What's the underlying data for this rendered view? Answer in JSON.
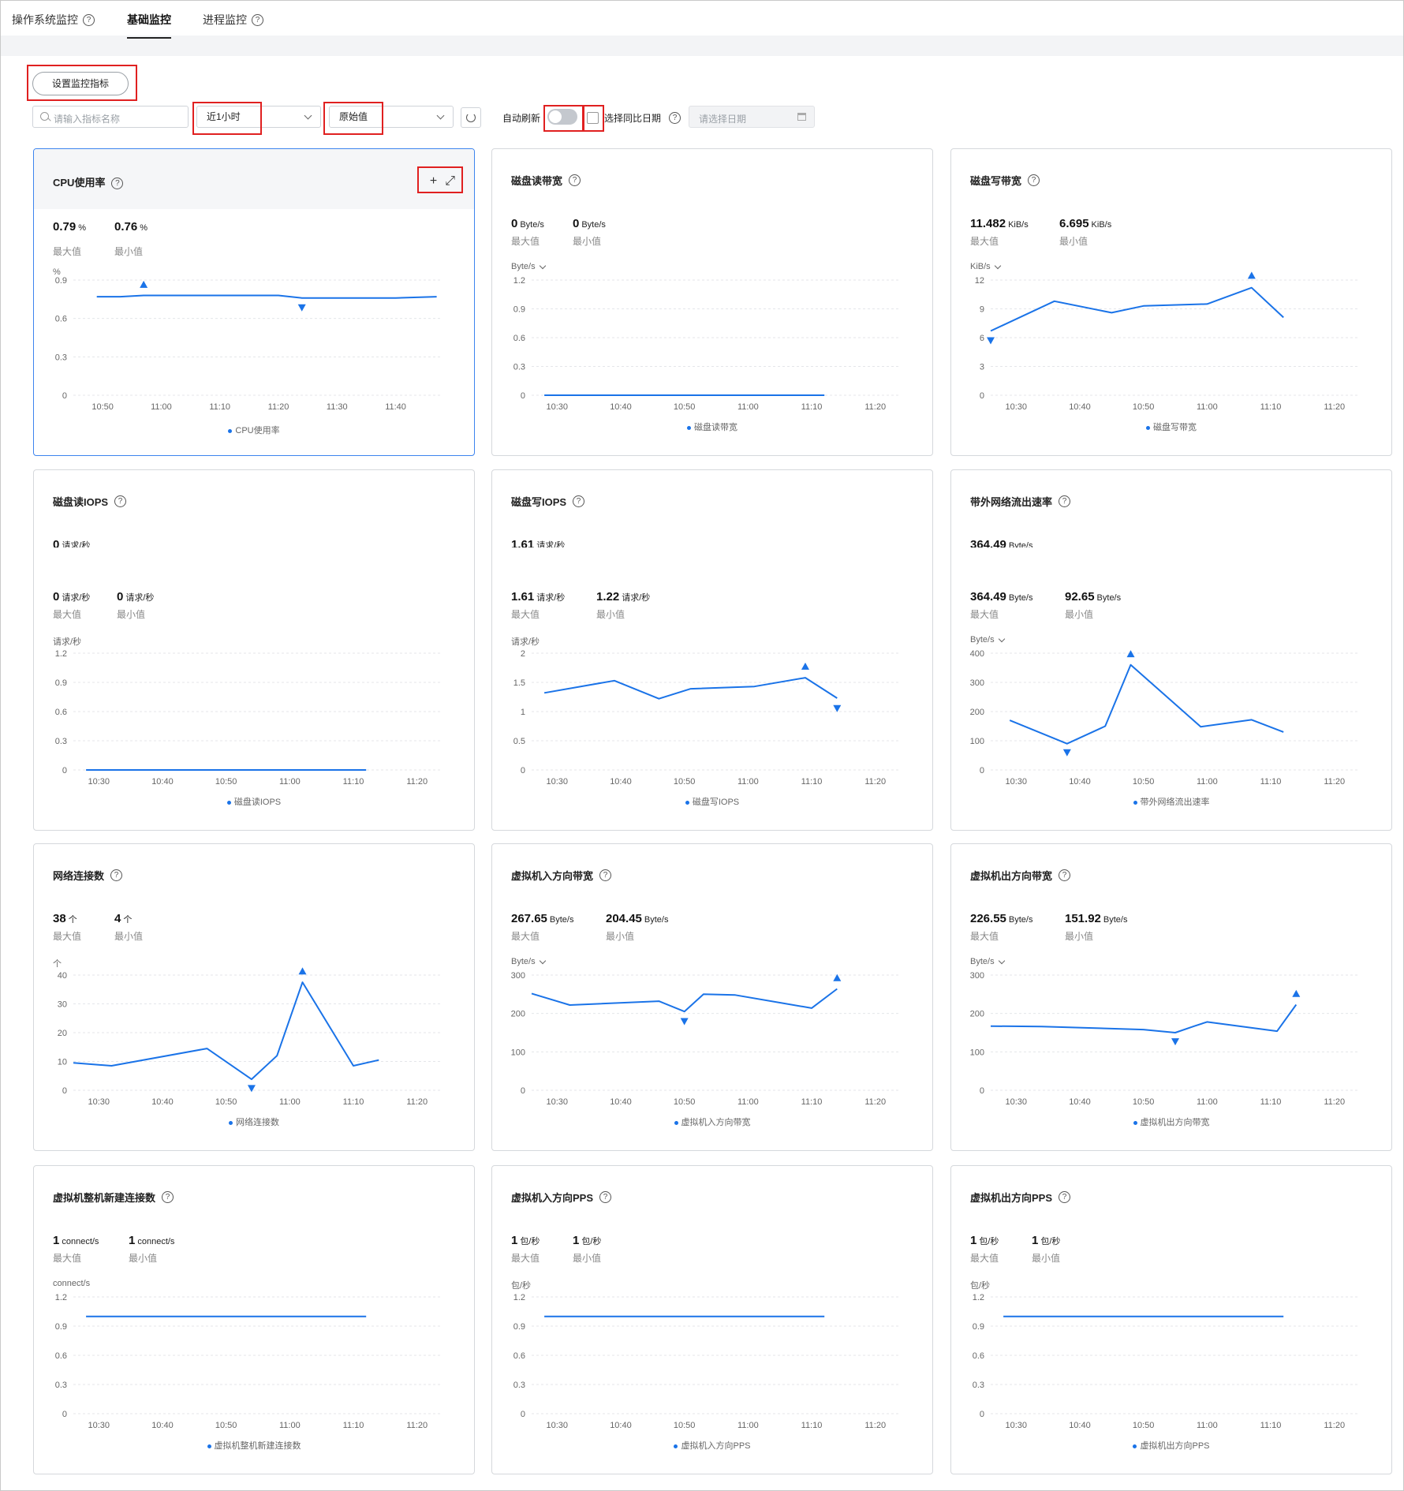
{
  "tabs": [
    {
      "label": "操作系统监控"
    },
    {
      "label": "基础监控"
    },
    {
      "label": "进程监控"
    }
  ],
  "toolbar": {
    "settings_label": "设置监控指标",
    "search_placeholder": "请输入指标名称",
    "time_range": "近1小时",
    "value_mode": "原始值",
    "auto_refresh_label": "自动刷新",
    "auto_refresh_on": false,
    "compare_label": "选择同比日期",
    "date_placeholder": "请选择日期"
  },
  "accent_color": "#1a73e8",
  "charts": [
    {
      "title": "CPU使用率",
      "max": "0.79",
      "min": "0.76",
      "unit_short": "%",
      "unit": "%",
      "unit_dropdown": false,
      "max_label": "最大值",
      "min_label": "最小值",
      "legend": "CPU使用率",
      "selected": true,
      "y_ticks": [
        "0.9",
        "0.6",
        "0.3",
        "0"
      ],
      "y_max": 0.9,
      "x_ticks": [
        "10:50",
        "11:00",
        "11:10",
        "11:20",
        "11:30",
        "11:40"
      ],
      "x_start": "10:45",
      "x_end": "11:48",
      "points": [
        [
          "10:49",
          0.77
        ],
        [
          "10:53",
          0.77
        ],
        [
          "10:57",
          0.78
        ],
        [
          "11:00",
          0.78
        ],
        [
          "11:10",
          0.78
        ],
        [
          "11:20",
          0.78
        ],
        [
          "11:24",
          0.76
        ],
        [
          "11:30",
          0.76
        ],
        [
          "11:40",
          0.76
        ],
        [
          "11:47",
          0.77
        ]
      ],
      "max_marker": [
        "10:57",
        0.79
      ],
      "min_marker": [
        "11:24",
        0.76
      ]
    },
    {
      "title": "磁盘读带宽",
      "max": "0",
      "min": "0",
      "unit_short": "Byte/s",
      "unit": "Byte/s",
      "unit_dropdown": true,
      "max_label": "最大值",
      "min_label": "最小值",
      "legend": "磁盘读带宽",
      "y_ticks": [
        "1.2",
        "0.9",
        "0.6",
        "0.3",
        "0"
      ],
      "y_max": 1.2,
      "x_ticks": [
        "10:30",
        "10:40",
        "10:50",
        "11:00",
        "11:10",
        "11:20"
      ],
      "x_start": "10:26",
      "x_end": "11:24",
      "points": [
        [
          "10:28",
          0
        ],
        [
          "11:12",
          0
        ]
      ]
    },
    {
      "title": "磁盘写带宽",
      "max": "11.482",
      "min": "6.695",
      "unit_short": "KiB/s",
      "unit": "KiB/s",
      "unit_dropdown": true,
      "max_label": "最大值",
      "min_label": "最小值",
      "legend": "磁盘写带宽",
      "y_ticks": [
        "12",
        "9",
        "6",
        "3",
        "0"
      ],
      "y_max": 12,
      "x_ticks": [
        "10:30",
        "10:40",
        "10:50",
        "11:00",
        "11:10",
        "11:20"
      ],
      "x_start": "10:26",
      "x_end": "11:24",
      "points": [
        [
          "10:26",
          6.7
        ],
        [
          "10:36",
          9.8
        ],
        [
          "10:45",
          8.6
        ],
        [
          "10:50",
          9.3
        ],
        [
          "11:00",
          9.5
        ],
        [
          "11:07",
          11.2
        ],
        [
          "11:12",
          8.1
        ]
      ],
      "max_marker": [
        "11:07",
        11.48
      ],
      "min_marker": [
        "10:26",
        6.7
      ]
    },
    {
      "title": "磁盘读IOPS",
      "max": "0",
      "min": "0",
      "unit_short": "请求/秒",
      "unit": "请求/秒",
      "unit_dropdown": false,
      "max_label": "最大值",
      "min_label": "最小值",
      "legend": "磁盘读IOPS",
      "ghost": true,
      "y_ticks": [
        "1.2",
        "0.9",
        "0.6",
        "0.3",
        "0"
      ],
      "y_max": 1.2,
      "x_ticks": [
        "10:30",
        "10:40",
        "10:50",
        "11:00",
        "11:10",
        "11:20"
      ],
      "x_start": "10:26",
      "x_end": "11:24",
      "points": [
        [
          "10:28",
          0
        ],
        [
          "11:12",
          0
        ]
      ]
    },
    {
      "title": "磁盘写IOPS",
      "max": "1.61",
      "min": "1.22",
      "unit_short": "请求/秒",
      "unit": "请求/秒",
      "unit_dropdown": false,
      "max_label": "最大值",
      "min_label": "最小值",
      "legend": "磁盘写IOPS",
      "ghost": true,
      "y_ticks": [
        "2",
        "1.5",
        "1",
        "0.5",
        "0"
      ],
      "y_max": 2,
      "x_ticks": [
        "10:30",
        "10:40",
        "10:50",
        "11:00",
        "11:10",
        "11:20"
      ],
      "x_start": "10:26",
      "x_end": "11:24",
      "points": [
        [
          "10:28",
          1.32
        ],
        [
          "10:39",
          1.53
        ],
        [
          "10:46",
          1.22
        ],
        [
          "10:51",
          1.39
        ],
        [
          "11:01",
          1.43
        ],
        [
          "11:09",
          1.58
        ],
        [
          "11:14",
          1.23
        ]
      ],
      "max_marker": [
        "11:09",
        1.61
      ],
      "min_marker": [
        "11:14",
        1.22
      ]
    },
    {
      "title": "带外网络流出速率",
      "max": "364.49",
      "min": "92.65",
      "unit_short": "Byte/s",
      "unit": "Byte/s",
      "unit_dropdown": true,
      "max_label": "最大值",
      "min_label": "最小值",
      "legend": "带外网络流出速率",
      "ghost": true,
      "y_ticks": [
        "400",
        "300",
        "200",
        "100",
        "0"
      ],
      "y_max": 400,
      "x_ticks": [
        "10:30",
        "10:40",
        "10:50",
        "11:00",
        "11:10",
        "11:20"
      ],
      "x_start": "10:26",
      "x_end": "11:24",
      "points": [
        [
          "10:29",
          170
        ],
        [
          "10:38",
          90
        ],
        [
          "10:44",
          150
        ],
        [
          "10:48",
          360
        ],
        [
          "10:59",
          148
        ],
        [
          "11:07",
          172
        ],
        [
          "11:12",
          130
        ]
      ],
      "max_marker": [
        "10:48",
        364.49
      ],
      "min_marker": [
        "10:38",
        92.65
      ]
    },
    {
      "title": "网络连接数",
      "max": "38",
      "min": "4",
      "unit_short": "个",
      "unit": "个",
      "unit_dropdown": false,
      "max_label": "最大值",
      "min_label": "最小值",
      "legend": "网络连接数",
      "y_ticks": [
        "40",
        "30",
        "20",
        "10",
        "0"
      ],
      "y_max": 40,
      "x_ticks": [
        "10:30",
        "10:40",
        "10:50",
        "11:00",
        "11:10",
        "11:20"
      ],
      "x_start": "10:26",
      "x_end": "11:24",
      "points": [
        [
          "10:26",
          9.5
        ],
        [
          "10:32",
          8.5
        ],
        [
          "10:47",
          14.5
        ],
        [
          "10:54",
          3.8
        ],
        [
          "10:58",
          12
        ],
        [
          "11:02",
          37.5
        ],
        [
          "11:10",
          8.5
        ],
        [
          "11:14",
          10.5
        ]
      ],
      "max_marker": [
        "11:02",
        38
      ],
      "min_marker": [
        "10:54",
        4
      ]
    },
    {
      "title": "虚拟机入方向带宽",
      "max": "267.65",
      "min": "204.45",
      "unit_short": "Byte/s",
      "unit": "Byte/s",
      "unit_dropdown": true,
      "max_label": "最大值",
      "min_label": "最小值",
      "legend": "虚拟机入方向带宽",
      "y_ticks": [
        "300",
        "200",
        "100",
        "0"
      ],
      "y_max": 300,
      "x_ticks": [
        "10:30",
        "10:40",
        "10:50",
        "11:00",
        "11:10",
        "11:20"
      ],
      "x_start": "10:26",
      "x_end": "11:24",
      "points": [
        [
          "10:26",
          252
        ],
        [
          "10:32",
          222
        ],
        [
          "10:46",
          232
        ],
        [
          "10:50",
          205
        ],
        [
          "10:53",
          250
        ],
        [
          "10:58",
          248
        ],
        [
          "11:10",
          214
        ],
        [
          "11:14",
          264
        ]
      ],
      "max_marker": [
        "11:14",
        267.65
      ],
      "min_marker": [
        "10:50",
        204.45
      ]
    },
    {
      "title": "虚拟机出方向带宽",
      "max": "226.55",
      "min": "151.92",
      "unit_short": "Byte/s",
      "unit": "Byte/s",
      "unit_dropdown": true,
      "max_label": "最大值",
      "min_label": "最小值",
      "legend": "虚拟机出方向带宽",
      "y_ticks": [
        "300",
        "200",
        "100",
        "0"
      ],
      "y_max": 300,
      "x_ticks": [
        "10:30",
        "10:40",
        "10:50",
        "11:00",
        "11:10",
        "11:20"
      ],
      "x_start": "10:26",
      "x_end": "11:24",
      "points": [
        [
          "10:26",
          167
        ],
        [
          "10:34",
          166
        ],
        [
          "10:50",
          158
        ],
        [
          "10:55",
          150
        ],
        [
          "10:58",
          167
        ],
        [
          "11:00",
          178
        ],
        [
          "11:11",
          154
        ],
        [
          "11:14",
          223
        ]
      ],
      "max_marker": [
        "11:14",
        226.55
      ],
      "min_marker": [
        "10:55",
        151.92
      ]
    },
    {
      "title": "虚拟机整机新建连接数",
      "max": "1",
      "min": "1",
      "unit_short": "connect/s",
      "unit": "connect/s",
      "unit_dropdown": false,
      "max_label": "最大值",
      "min_label": "最小值",
      "legend": "虚拟机整机新建连接数",
      "y_ticks": [
        "1.2",
        "0.9",
        "0.6",
        "0.3",
        "0"
      ],
      "y_max": 1.2,
      "x_ticks": [
        "10:30",
        "10:40",
        "10:50",
        "11:00",
        "11:10",
        "11:20"
      ],
      "x_start": "10:26",
      "x_end": "11:24",
      "points": [
        [
          "10:28",
          1
        ],
        [
          "11:12",
          1
        ]
      ]
    },
    {
      "title": "虚拟机入方向PPS",
      "max": "1",
      "min": "1",
      "unit_short": "包/秒",
      "unit": "包/秒",
      "unit_dropdown": false,
      "max_label": "最大值",
      "min_label": "最小值",
      "legend": "虚拟机入方向PPS",
      "y_ticks": [
        "1.2",
        "0.9",
        "0.6",
        "0.3",
        "0"
      ],
      "y_max": 1.2,
      "x_ticks": [
        "10:30",
        "10:40",
        "10:50",
        "11:00",
        "11:10",
        "11:20"
      ],
      "x_start": "10:26",
      "x_end": "11:24",
      "points": [
        [
          "10:28",
          1
        ],
        [
          "11:12",
          1
        ]
      ]
    },
    {
      "title": "虚拟机出方向PPS",
      "max": "1",
      "min": "1",
      "unit_short": "包/秒",
      "unit": "包/秒",
      "unit_dropdown": false,
      "max_label": "最大值",
      "min_label": "最小值",
      "legend": "虚拟机出方向PPS",
      "y_ticks": [
        "1.2",
        "0.9",
        "0.6",
        "0.3",
        "0"
      ],
      "y_max": 1.2,
      "x_ticks": [
        "10:30",
        "10:40",
        "10:50",
        "11:00",
        "11:10",
        "11:20"
      ],
      "x_start": "10:26",
      "x_end": "11:24",
      "points": [
        [
          "10:28",
          1
        ],
        [
          "11:12",
          1
        ]
      ]
    }
  ]
}
